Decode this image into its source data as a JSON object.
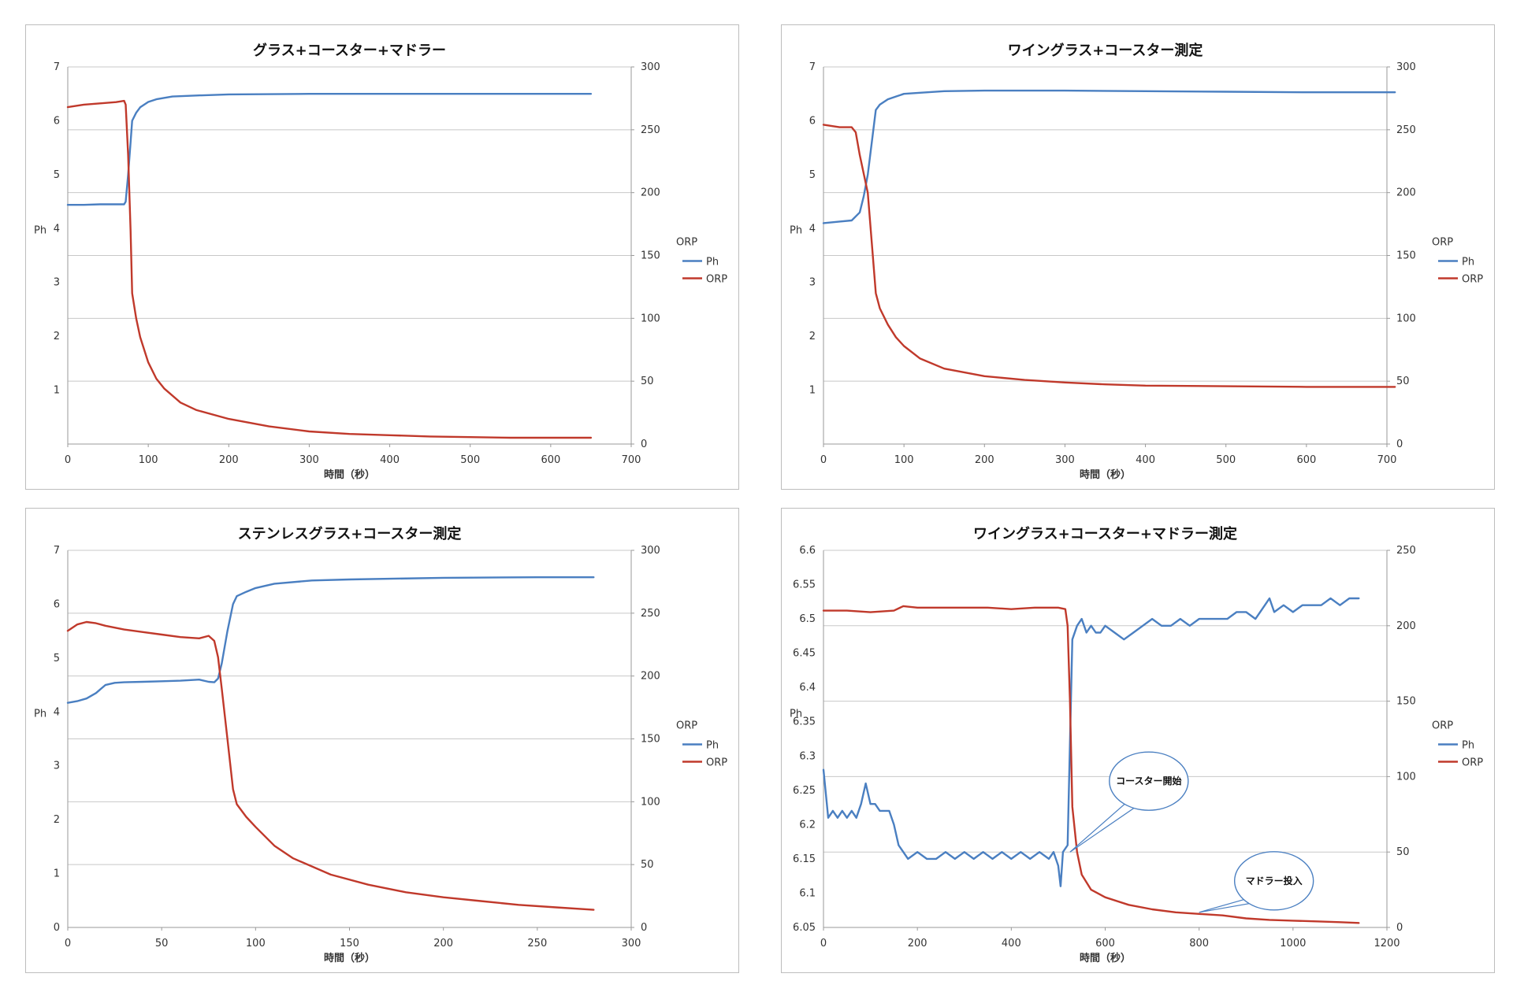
{
  "colors": {
    "ph": "#4a7fc1",
    "orp": "#c0392b",
    "grid": "#c8c8c8",
    "axis": "#9a9a9a"
  },
  "chart_data": [
    {
      "type": "line",
      "title": "グラス+コースター+マドラー",
      "xlabel": "時間（秒）",
      "ylabel": "Ph",
      "y2label": "ORP",
      "xlim": [
        0,
        700
      ],
      "ylim": [
        0,
        7
      ],
      "y2lim": [
        0,
        300
      ],
      "xticks": [
        0,
        100,
        200,
        300,
        400,
        500,
        600,
        700
      ],
      "yticks": [
        1,
        2,
        3,
        4,
        5,
        6,
        7
      ],
      "y2ticks": [
        0,
        50,
        100,
        150,
        200,
        250,
        300
      ],
      "legend_title": "ORP",
      "legend_position": "right",
      "series": [
        {
          "name": "Ph",
          "axis": "left",
          "x": [
            0,
            20,
            40,
            60,
            70,
            72,
            75,
            78,
            80,
            85,
            90,
            100,
            110,
            130,
            160,
            200,
            300,
            400,
            500,
            650
          ],
          "y": [
            4.44,
            4.44,
            4.45,
            4.45,
            4.45,
            4.5,
            5.0,
            5.6,
            6.0,
            6.15,
            6.25,
            6.35,
            6.4,
            6.45,
            6.47,
            6.49,
            6.5,
            6.5,
            6.5,
            6.5
          ]
        },
        {
          "name": "ORP",
          "axis": "right",
          "x": [
            0,
            20,
            40,
            60,
            70,
            72,
            75,
            78,
            80,
            85,
            90,
            100,
            110,
            120,
            140,
            160,
            200,
            250,
            300,
            350,
            400,
            450,
            500,
            550,
            600,
            650
          ],
          "y": [
            268,
            270,
            271,
            272,
            273,
            270,
            230,
            170,
            120,
            100,
            85,
            65,
            52,
            44,
            33,
            27,
            20,
            14,
            10,
            8,
            7,
            6,
            5.5,
            5,
            5,
            5
          ]
        }
      ]
    },
    {
      "type": "line",
      "title": "ワイングラス+コースター測定",
      "xlabel": "時間（秒）",
      "ylabel": "Ph",
      "y2label": "ORP",
      "xlim": [
        0,
        700
      ],
      "ylim": [
        0,
        7
      ],
      "y2lim": [
        0,
        300
      ],
      "xticks": [
        0,
        100,
        200,
        300,
        400,
        500,
        600,
        700
      ],
      "yticks": [
        1,
        2,
        3,
        4,
        5,
        6,
        7
      ],
      "y2ticks": [
        0,
        50,
        100,
        150,
        200,
        250,
        300
      ],
      "legend_title": "ORP",
      "legend_position": "right",
      "series": [
        {
          "name": "Ph",
          "axis": "left",
          "x": [
            0,
            20,
            35,
            45,
            50,
            55,
            60,
            65,
            70,
            80,
            90,
            100,
            120,
            150,
            200,
            300,
            400,
            500,
            600,
            710
          ],
          "y": [
            4.1,
            4.13,
            4.15,
            4.3,
            4.6,
            5.0,
            5.6,
            6.2,
            6.3,
            6.4,
            6.45,
            6.5,
            6.52,
            6.55,
            6.56,
            6.56,
            6.55,
            6.54,
            6.53,
            6.53
          ]
        },
        {
          "name": "ORP",
          "axis": "right",
          "x": [
            0,
            20,
            35,
            40,
            45,
            50,
            55,
            60,
            65,
            70,
            80,
            90,
            100,
            120,
            150,
            200,
            250,
            300,
            350,
            400,
            500,
            600,
            710
          ],
          "y": [
            254,
            252,
            252,
            248,
            230,
            215,
            200,
            160,
            120,
            108,
            95,
            85,
            78,
            68,
            60,
            54,
            51,
            49,
            47.5,
            46.5,
            46,
            45.5,
            45.5
          ]
        }
      ]
    },
    {
      "type": "line",
      "title": "ステンレスグラス+コースター測定",
      "xlabel": "時間（秒）",
      "ylabel": "Ph",
      "y2label": "ORP",
      "xlim": [
        0,
        300
      ],
      "ylim": [
        0,
        7
      ],
      "y2lim": [
        0,
        300
      ],
      "xticks": [
        0,
        50,
        100,
        150,
        200,
        250,
        300
      ],
      "yticks": [
        0,
        1,
        2,
        3,
        4,
        5,
        6,
        7
      ],
      "y2ticks": [
        0,
        50,
        100,
        150,
        200,
        250,
        300
      ],
      "legend_title": "ORP",
      "legend_position": "right",
      "series": [
        {
          "name": "Ph",
          "axis": "left",
          "x": [
            0,
            5,
            10,
            15,
            20,
            25,
            30,
            40,
            50,
            60,
            70,
            75,
            78,
            80,
            82,
            85,
            88,
            90,
            95,
            100,
            110,
            130,
            150,
            200,
            250,
            280
          ],
          "y": [
            4.17,
            4.2,
            4.25,
            4.35,
            4.5,
            4.54,
            4.55,
            4.56,
            4.57,
            4.58,
            4.6,
            4.56,
            4.55,
            4.62,
            4.9,
            5.5,
            6.0,
            6.15,
            6.23,
            6.3,
            6.38,
            6.44,
            6.46,
            6.49,
            6.5,
            6.5
          ]
        },
        {
          "name": "ORP",
          "axis": "right",
          "x": [
            0,
            5,
            10,
            15,
            20,
            30,
            40,
            50,
            60,
            70,
            75,
            78,
            80,
            82,
            85,
            88,
            90,
            95,
            100,
            110,
            120,
            140,
            160,
            180,
            200,
            220,
            240,
            260,
            280
          ],
          "y": [
            236,
            241,
            243,
            242,
            240,
            237,
            235,
            233,
            231,
            230,
            232,
            228,
            215,
            190,
            150,
            110,
            98,
            88,
            80,
            65,
            55,
            42,
            34,
            28,
            24,
            21,
            18,
            16,
            14
          ]
        }
      ]
    },
    {
      "type": "line",
      "title": "ワイングラス+コースター+マドラー測定",
      "xlabel": "時間（秒）",
      "ylabel": "Ph",
      "y2label": "ORP",
      "xlim": [
        0,
        1200
      ],
      "ylim": [
        6.05,
        6.6
      ],
      "y2lim": [
        0,
        250
      ],
      "xticks": [
        0,
        200,
        400,
        600,
        800,
        1000,
        1200
      ],
      "yticks": [
        6.05,
        6.1,
        6.15,
        6.2,
        6.25,
        6.3,
        6.35,
        6.4,
        6.45,
        6.5,
        6.55,
        6.6
      ],
      "y2ticks": [
        0,
        50,
        100,
        150,
        200,
        250
      ],
      "legend_title": "ORP",
      "legend_position": "right",
      "annotations": [
        {
          "text": "コースター開始",
          "x": 525,
          "y2": 50
        },
        {
          "text": "マドラー投入",
          "x": 800,
          "y2": 10
        }
      ],
      "series": [
        {
          "name": "Ph",
          "axis": "left",
          "x": [
            0,
            10,
            20,
            30,
            40,
            50,
            60,
            70,
            80,
            90,
            100,
            110,
            120,
            130,
            140,
            150,
            160,
            170,
            180,
            200,
            220,
            240,
            260,
            280,
            300,
            320,
            340,
            360,
            380,
            400,
            420,
            440,
            460,
            480,
            490,
            500,
            505,
            510,
            520,
            530,
            540,
            550,
            560,
            570,
            580,
            590,
            600,
            620,
            640,
            660,
            680,
            700,
            720,
            740,
            760,
            780,
            800,
            820,
            840,
            860,
            880,
            900,
            920,
            940,
            950,
            960,
            980,
            1000,
            1020,
            1040,
            1060,
            1080,
            1100,
            1120,
            1140
          ],
          "y": [
            6.28,
            6.21,
            6.22,
            6.21,
            6.22,
            6.21,
            6.22,
            6.21,
            6.23,
            6.26,
            6.23,
            6.23,
            6.22,
            6.22,
            6.22,
            6.2,
            6.17,
            6.16,
            6.15,
            6.16,
            6.15,
            6.15,
            6.16,
            6.15,
            6.16,
            6.15,
            6.16,
            6.15,
            6.16,
            6.15,
            6.16,
            6.15,
            6.16,
            6.15,
            6.16,
            6.14,
            6.11,
            6.16,
            6.17,
            6.47,
            6.49,
            6.5,
            6.48,
            6.49,
            6.48,
            6.48,
            6.49,
            6.48,
            6.47,
            6.48,
            6.49,
            6.5,
            6.49,
            6.49,
            6.5,
            6.49,
            6.5,
            6.5,
            6.5,
            6.5,
            6.51,
            6.51,
            6.5,
            6.52,
            6.53,
            6.51,
            6.52,
            6.51,
            6.52,
            6.52,
            6.52,
            6.53,
            6.52,
            6.53,
            6.53
          ]
        },
        {
          "name": "ORP",
          "axis": "right",
          "x": [
            0,
            50,
            100,
            150,
            170,
            200,
            250,
            300,
            350,
            400,
            450,
            500,
            515,
            520,
            525,
            530,
            540,
            550,
            570,
            600,
            650,
            700,
            750,
            800,
            850,
            900,
            950,
            1000,
            1050,
            1100,
            1140
          ],
          "y": [
            210,
            210,
            209,
            210,
            213,
            212,
            212,
            212,
            212,
            211,
            212,
            212,
            211,
            200,
            150,
            80,
            50,
            35,
            25,
            20,
            15,
            12,
            10,
            9,
            8,
            6,
            5,
            4.5,
            4,
            3.5,
            3
          ]
        }
      ]
    }
  ]
}
